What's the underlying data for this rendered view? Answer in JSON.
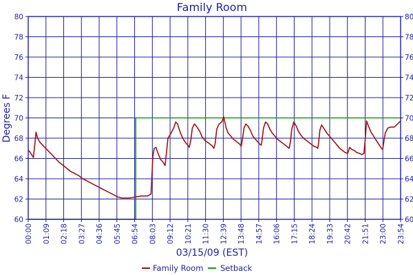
{
  "chart_data": {
    "type": "line",
    "title": "Family Room",
    "xlabel": "03/15/09 (EST)",
    "ylabel": "Degrees F",
    "ylim": [
      60,
      80
    ],
    "y_ticks": [
      60,
      62,
      64,
      66,
      68,
      70,
      72,
      74,
      76,
      78,
      80
    ],
    "right_axis_ticks": true,
    "grid": true,
    "legend_position": "bottom",
    "x_tick_labels": [
      "00:00",
      "01:09",
      "02:18",
      "03:27",
      "04:36",
      "05:45",
      "06:54",
      "08:03",
      "09:12",
      "10:21",
      "11:30",
      "12:39",
      "13:48",
      "14:57",
      "16:06",
      "17:15",
      "18:24",
      "19:33",
      "20:42",
      "21:51",
      "23:00",
      "23:54"
    ],
    "x_range_minutes": [
      0,
      1434
    ],
    "colors": {
      "axis": "#1f1f9e",
      "grid": "#1f1f9e",
      "family_room": "#a01010",
      "setback": "#10a010"
    },
    "series": [
      {
        "name": "Family Room",
        "color": "#a01010",
        "points": [
          [
            "00:00",
            66.8
          ],
          [
            "00:05",
            66.7
          ],
          [
            "00:15",
            66.3
          ],
          [
            "00:20",
            66.1
          ],
          [
            "00:26",
            67.5
          ],
          [
            "00:30",
            68.6
          ],
          [
            "00:36",
            68.0
          ],
          [
            "00:45",
            67.6
          ],
          [
            "01:00",
            67.2
          ],
          [
            "01:15",
            66.8
          ],
          [
            "01:30",
            66.4
          ],
          [
            "01:45",
            66.0
          ],
          [
            "02:00",
            65.6
          ],
          [
            "02:15",
            65.3
          ],
          [
            "02:30",
            65.0
          ],
          [
            "02:45",
            64.7
          ],
          [
            "03:00",
            64.5
          ],
          [
            "03:15",
            64.3
          ],
          [
            "03:30",
            64.0
          ],
          [
            "03:45",
            63.8
          ],
          [
            "04:00",
            63.6
          ],
          [
            "04:15",
            63.4
          ],
          [
            "04:30",
            63.2
          ],
          [
            "04:45",
            63.0
          ],
          [
            "05:00",
            62.8
          ],
          [
            "05:15",
            62.6
          ],
          [
            "05:30",
            62.4
          ],
          [
            "05:45",
            62.2
          ],
          [
            "06:00",
            62.1
          ],
          [
            "06:30",
            62.1
          ],
          [
            "06:54",
            62.2
          ],
          [
            "07:15",
            62.3
          ],
          [
            "07:40",
            62.3
          ],
          [
            "07:53",
            62.5
          ],
          [
            "08:00",
            66.2
          ],
          [
            "08:05",
            67.0
          ],
          [
            "08:12",
            67.1
          ],
          [
            "08:20",
            66.5
          ],
          [
            "08:30",
            65.9
          ],
          [
            "08:40",
            65.6
          ],
          [
            "08:47",
            65.3
          ],
          [
            "08:52",
            66.5
          ],
          [
            "08:58",
            68.0
          ],
          [
            "09:10",
            68.5
          ],
          [
            "09:20",
            69.0
          ],
          [
            "09:28",
            69.6
          ],
          [
            "09:35",
            69.4
          ],
          [
            "09:45",
            68.6
          ],
          [
            "09:55",
            68.0
          ],
          [
            "10:05",
            67.6
          ],
          [
            "10:15",
            67.3
          ],
          [
            "10:20",
            67.1
          ],
          [
            "10:26",
            67.8
          ],
          [
            "10:32",
            69.0
          ],
          [
            "10:40",
            69.4
          ],
          [
            "10:50",
            69.1
          ],
          [
            "11:00",
            68.7
          ],
          [
            "11:10",
            68.1
          ],
          [
            "11:20",
            67.8
          ],
          [
            "11:30",
            67.6
          ],
          [
            "11:40",
            67.4
          ],
          [
            "11:50",
            67.2
          ],
          [
            "11:55",
            67.0
          ],
          [
            "12:00",
            67.5
          ],
          [
            "12:06",
            68.9
          ],
          [
            "12:15",
            69.4
          ],
          [
            "12:25",
            69.6
          ],
          [
            "12:33",
            70.1
          ],
          [
            "12:42",
            69.0
          ],
          [
            "12:50",
            68.5
          ],
          [
            "13:00",
            68.2
          ],
          [
            "13:10",
            67.9
          ],
          [
            "13:20",
            67.7
          ],
          [
            "13:30",
            67.5
          ],
          [
            "13:35",
            67.4
          ],
          [
            "13:40",
            67.2
          ],
          [
            "13:45",
            67.9
          ],
          [
            "13:51",
            69.0
          ],
          [
            "13:58",
            69.4
          ],
          [
            "14:06",
            69.2
          ],
          [
            "14:15",
            68.8
          ],
          [
            "14:25",
            68.2
          ],
          [
            "14:35",
            67.9
          ],
          [
            "14:45",
            67.6
          ],
          [
            "14:52",
            67.4
          ],
          [
            "14:57",
            67.3
          ],
          [
            "15:00",
            67.7
          ],
          [
            "15:06",
            69.0
          ],
          [
            "15:14",
            69.6
          ],
          [
            "15:22",
            69.4
          ],
          [
            "15:30",
            68.9
          ],
          [
            "15:40",
            68.5
          ],
          [
            "15:50",
            68.2
          ],
          [
            "16:00",
            67.9
          ],
          [
            "16:10",
            67.7
          ],
          [
            "16:20",
            67.5
          ],
          [
            "16:30",
            67.3
          ],
          [
            "16:40",
            67.1
          ],
          [
            "16:45",
            67.0
          ],
          [
            "16:50",
            67.7
          ],
          [
            "16:55",
            68.9
          ],
          [
            "17:03",
            69.6
          ],
          [
            "17:12",
            69.2
          ],
          [
            "17:20",
            68.7
          ],
          [
            "17:30",
            68.3
          ],
          [
            "17:40",
            68.0
          ],
          [
            "17:50",
            67.8
          ],
          [
            "18:00",
            67.6
          ],
          [
            "18:10",
            67.4
          ],
          [
            "18:20",
            67.2
          ],
          [
            "18:30",
            67.1
          ],
          [
            "18:35",
            67.0
          ],
          [
            "18:38",
            67.5
          ],
          [
            "18:43",
            68.8
          ],
          [
            "18:50",
            69.3
          ],
          [
            "19:00",
            68.9
          ],
          [
            "19:10",
            68.5
          ],
          [
            "19:20",
            68.2
          ],
          [
            "19:30",
            67.9
          ],
          [
            "19:40",
            67.6
          ],
          [
            "19:50",
            67.3
          ],
          [
            "20:00",
            67.0
          ],
          [
            "20:10",
            66.8
          ],
          [
            "20:20",
            66.6
          ],
          [
            "20:30",
            66.5
          ],
          [
            "20:38",
            67.1
          ],
          [
            "20:45",
            66.9
          ],
          [
            "20:55",
            66.8
          ],
          [
            "21:05",
            66.6
          ],
          [
            "21:15",
            66.5
          ],
          [
            "21:25",
            66.4
          ],
          [
            "21:33",
            66.5
          ],
          [
            "21:38",
            68.0
          ],
          [
            "21:43",
            69.7
          ],
          [
            "21:50",
            69.2
          ],
          [
            "22:00",
            68.6
          ],
          [
            "22:10",
            68.2
          ],
          [
            "22:20",
            67.8
          ],
          [
            "22:30",
            67.4
          ],
          [
            "22:40",
            67.0
          ],
          [
            "22:45",
            66.9
          ],
          [
            "22:50",
            67.8
          ],
          [
            "22:55",
            68.5
          ],
          [
            "23:05",
            69.0
          ],
          [
            "23:15",
            69.1
          ],
          [
            "23:30",
            69.1
          ],
          [
            "23:42",
            69.4
          ],
          [
            "23:54",
            69.7
          ]
        ]
      },
      {
        "name": "Setback",
        "color": "#10a010",
        "points": [
          [
            "00:00",
            60
          ],
          [
            "06:54",
            60
          ],
          [
            "06:54",
            70
          ],
          [
            "23:54",
            70
          ]
        ]
      }
    ]
  }
}
